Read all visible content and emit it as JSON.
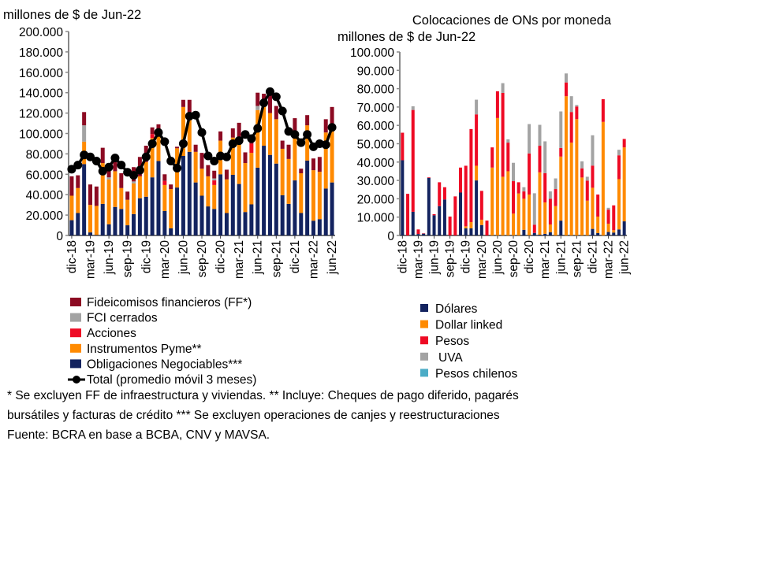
{
  "footnotes": [
    "* Se excluyen FF de infraestructura y viviendas. ** Incluye: Cheques de pago diferido, pagarés",
    "bursátiles y facturas de crédito *** Se excluyen operaciones de canjes y reestructuraciones",
    "Fuente: BCRA en base a BCBA, CNV y MAVSA."
  ],
  "chart_data": [
    {
      "type": "bar",
      "stacked": true,
      "title": "",
      "ylabel": "millones de $ de Jun-22",
      "ylim": [
        0,
        200000
      ],
      "y_ticks": [
        "0",
        "20.000",
        "40.000",
        "60.000",
        "80.000",
        "100.000",
        "120.000",
        "140.000",
        "160.000",
        "180.000",
        "200.000"
      ],
      "x_tick_labels": [
        "dic-18",
        "mar-19",
        "jun-19",
        "sep-19",
        "dic-19",
        "mar-20",
        "jun-20",
        "sep-20",
        "dic-20",
        "mar-21",
        "jun-21",
        "sep-21",
        "dic-21",
        "mar-22",
        "jun-22"
      ],
      "x_tick_every": 3,
      "grid": false,
      "legend_position": "bottom",
      "series": [
        {
          "name": "Obligaciones Negociables***",
          "color": "#13235f",
          "values": [
            15000,
            22000,
            70000,
            3000,
            500,
            31000,
            11000,
            28000,
            26000,
            10000,
            21000,
            36500,
            38000,
            57000,
            73000,
            24000,
            7000,
            47000,
            78000,
            82000,
            52000,
            39000,
            28500,
            26000,
            60000,
            22000,
            59500,
            50500,
            23000,
            30500,
            66500,
            88000,
            79000,
            70500,
            39500,
            31000,
            54000,
            22000,
            73500,
            14500,
            16000,
            46000,
            52000
          ]
        },
        {
          "name": "Instrumentos Pyme**",
          "color": "#ff8a00",
          "values": [
            24000,
            24500,
            22000,
            27000,
            28500,
            40000,
            44000,
            35000,
            20500,
            25000,
            30000,
            21500,
            34000,
            38500,
            31500,
            25500,
            38500,
            38500,
            48000,
            33000,
            30000,
            26500,
            29500,
            23500,
            33000,
            33000,
            36500,
            39500,
            48000,
            50500,
            56500,
            39500,
            41000,
            43500,
            45500,
            44000,
            41000,
            39000,
            34500,
            49500,
            46500,
            55000,
            50000
          ]
        },
        {
          "name": "Acciones",
          "color": "#ee0a24",
          "values": [
            0,
            0,
            0,
            0,
            0,
            0,
            0,
            0,
            0,
            0,
            0,
            0,
            0,
            4000,
            0,
            4000,
            0,
            0,
            0,
            0,
            0,
            0,
            0,
            4500,
            0,
            0,
            0,
            0,
            0,
            9000,
            0,
            0,
            0,
            0,
            0,
            0,
            0,
            0,
            0,
            0,
            0,
            0,
            0
          ]
        },
        {
          "name": "FCI cerrados",
          "color": "#a3a3a3",
          "values": [
            0,
            0,
            16000,
            0,
            0,
            0,
            2000,
            0,
            0,
            0,
            2000,
            0,
            0,
            0,
            0,
            0,
            0,
            0,
            0,
            0,
            0,
            0,
            0,
            2000,
            0,
            0,
            0,
            0,
            0,
            0,
            4000,
            0,
            0,
            0,
            0,
            0,
            0,
            0,
            0,
            0,
            0,
            0,
            0
          ]
        },
        {
          "name": "Fideicomisos financieros (FF*)",
          "color": "#8c0a22",
          "values": [
            19000,
            12500,
            13000,
            20000,
            19000,
            15000,
            7000,
            9000,
            14500,
            8000,
            14000,
            19000,
            16000,
            6500,
            4500,
            6500,
            4500,
            1500,
            7000,
            18000,
            7000,
            15500,
            11000,
            7500,
            9000,
            9500,
            9000,
            20500,
            10500,
            5000,
            13000,
            11500,
            18000,
            13000,
            8000,
            14000,
            20000,
            4500,
            10000,
            11500,
            14500,
            13000,
            24000
          ]
        }
      ],
      "line_series": {
        "name": "Total (promedio móvil 3 meses)",
        "color": "#000000",
        "values": [
          65000,
          69000,
          79000,
          77000,
          73000,
          63000,
          67000,
          76000,
          69000,
          62000,
          59000,
          64000,
          77000,
          90000,
          101000,
          92000,
          73000,
          66000,
          90000,
          117000,
          118000,
          101000,
          78000,
          73000,
          78000,
          77000,
          90000,
          93000,
          99000,
          95000,
          105000,
          130000,
          141000,
          136000,
          122000,
          102000,
          99000,
          91000,
          99000,
          87000,
          90000,
          89000,
          106000
        ]
      }
    },
    {
      "type": "bar",
      "stacked": true,
      "title": "Colocaciones de ONs por moneda",
      "ylabel": "millones de $ de Jun-22",
      "ylim": [
        0,
        100000
      ],
      "y_ticks": [
        "0",
        "10.000",
        "20.000",
        "30.000",
        "40.000",
        "50.000",
        "60.000",
        "70.000",
        "80.000",
        "90.000",
        "100.000"
      ],
      "x_tick_labels": [
        "dic-18",
        "mar-19",
        "jun-19",
        "sep-19",
        "dic-19",
        "mar-20",
        "jun-20",
        "sep-20",
        "dic-20",
        "mar-21",
        "jun-21",
        "sep-21",
        "dic-21",
        "mar-22",
        "jun-22"
      ],
      "x_tick_every": 3,
      "grid": false,
      "legend_position": "bottom",
      "series": [
        {
          "name": "Dólares",
          "color": "#13235f",
          "values": [
            41000,
            0,
            12900,
            800,
            1000,
            31400,
            11000,
            16000,
            19600,
            0,
            0,
            23400,
            3900,
            3900,
            30000,
            5700,
            0,
            0,
            0,
            0,
            0,
            0,
            0,
            3100,
            100,
            1400,
            400,
            900,
            1700,
            0,
            8100,
            0,
            0,
            0,
            0,
            0,
            3600,
            1300,
            0,
            1900,
            1600,
            3300,
            7700
          ]
        },
        {
          "name": "Dollar linked",
          "color": "#ff8a00",
          "values": [
            0,
            0,
            0,
            0,
            0,
            0,
            0,
            0,
            0,
            0,
            0,
            0,
            1100,
            3400,
            8000,
            2900,
            0,
            37000,
            64000,
            32000,
            35000,
            11900,
            22900,
            16900,
            22200,
            0,
            34000,
            17100,
            4300,
            16000,
            34900,
            75900,
            50600,
            63400,
            31600,
            19000,
            22400,
            9000,
            61900,
            4500,
            1300,
            27400,
            40300
          ]
        },
        {
          "name": "Pesos",
          "color": "#ee0a24",
          "values": [
            15000,
            22700,
            55500,
            2500,
            200,
            300,
            600,
            13000,
            6700,
            10300,
            21300,
            13600,
            33000,
            50700,
            28000,
            15700,
            8100,
            11000,
            14600,
            45700,
            15600,
            17700,
            6100,
            4000,
            22400,
            4500,
            14500,
            16000,
            14000,
            9300,
            4700,
            7500,
            16700,
            6900,
            5000,
            10900,
            12100,
            12000,
            12400,
            7700,
            13500,
            13000,
            4600
          ]
        },
        {
          "name": "UVA",
          "color": "#a3a3a3",
          "values": [
            0,
            0,
            2000,
            0,
            0,
            0,
            0,
            0,
            0,
            0,
            0,
            0,
            0,
            0,
            8000,
            0,
            0,
            0,
            0,
            5300,
            1800,
            10000,
            0,
            2300,
            16000,
            17100,
            11400,
            17300,
            4000,
            5800,
            19900,
            4900,
            8600,
            800,
            3800,
            2100,
            16500,
            0,
            0,
            1000,
            0,
            3000,
            0
          ]
        },
        {
          "name": "Pesos chilenos",
          "color": "#4bacc6",
          "values": [
            0,
            0,
            0,
            0,
            0,
            0,
            0,
            0,
            0,
            0,
            0,
            0,
            0,
            0,
            0,
            0,
            0,
            0,
            0,
            0,
            0,
            0,
            0,
            0,
            0,
            0,
            0,
            0,
            0,
            0,
            0,
            0,
            0,
            0,
            0,
            0,
            0,
            0,
            0,
            0,
            0,
            0,
            0
          ]
        }
      ]
    }
  ]
}
